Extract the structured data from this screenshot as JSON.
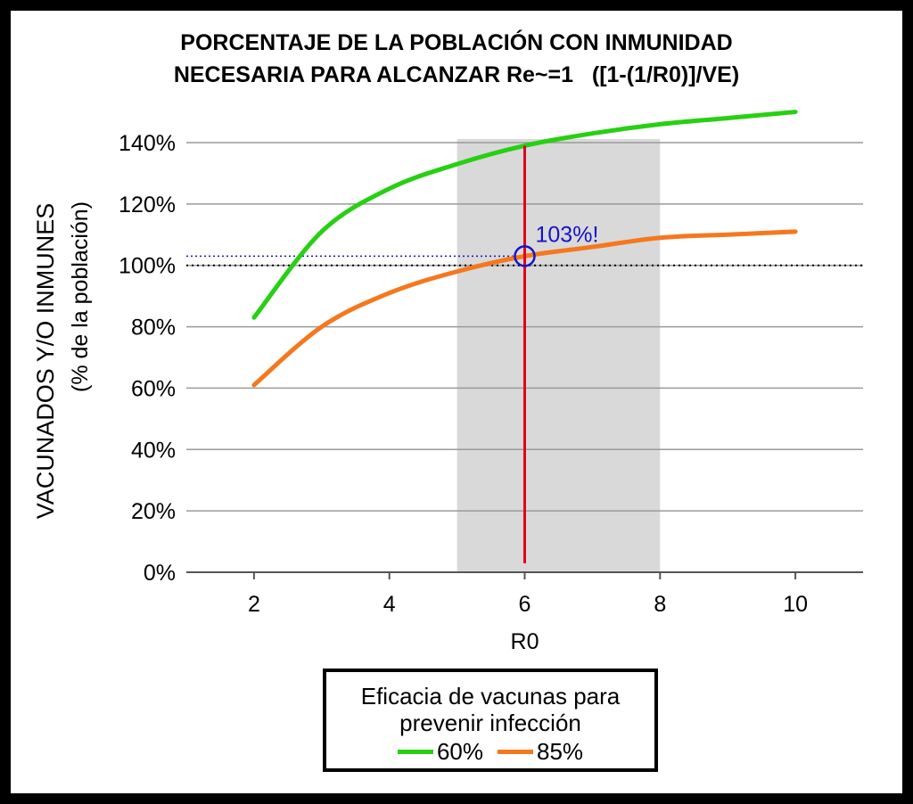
{
  "colors": {
    "series_60": "#27d012",
    "series_85": "#f5781e",
    "highlight_line": "#e0001b",
    "annotation": "#1414c8",
    "shade": "#d9d9d9",
    "grid": "#9a9a9a"
  },
  "legend": {
    "title_line1": "Eficacia de vacunas para",
    "title_line2": "prevenir infección"
  },
  "chart_data": {
    "type": "line",
    "title": "PORCENTAJE DE LA POBLACIÓN CON INMUNIDAD",
    "subtitle": "NECESARIA PARA ALCANZAR Re~=1   ([1-(1/R0)]/VE)",
    "xlabel": "R0",
    "ylabel": "VACUNADOS Y/O INMUNES",
    "ylabel2": "(% de la población)",
    "xlim": [
      1,
      11
    ],
    "ylim": [
      0,
      1.4
    ],
    "xticks": [
      2,
      4,
      6,
      8,
      10
    ],
    "xtick_labels": [
      "2",
      "4",
      "6",
      "8",
      "10"
    ],
    "yticks": [
      0,
      0.2,
      0.4,
      0.6,
      0.8,
      1.0,
      1.2,
      1.4
    ],
    "ytick_labels": [
      "0%",
      "20%",
      "40%",
      "60%",
      "80%",
      "100%",
      "120%",
      "140%"
    ],
    "grid": "horizontal",
    "legend_position": "bottom",
    "x": [
      2,
      3,
      4,
      5,
      6,
      7,
      8,
      9,
      10
    ],
    "series": [
      {
        "name": "60%",
        "values": [
          0.83,
          1.11,
          1.25,
          1.33,
          1.39,
          1.43,
          1.46,
          1.48,
          1.5
        ]
      },
      {
        "name": "85%",
        "values": [
          0.61,
          0.8,
          0.91,
          0.98,
          1.03,
          1.06,
          1.09,
          1.1,
          1.11
        ]
      }
    ],
    "shaded_region": {
      "x_from": 5,
      "x_to": 8
    },
    "reference_line": {
      "y": 1.0,
      "style": "dotted"
    },
    "highlight": {
      "x": 6,
      "y": 1.03,
      "label": "103%!"
    }
  }
}
